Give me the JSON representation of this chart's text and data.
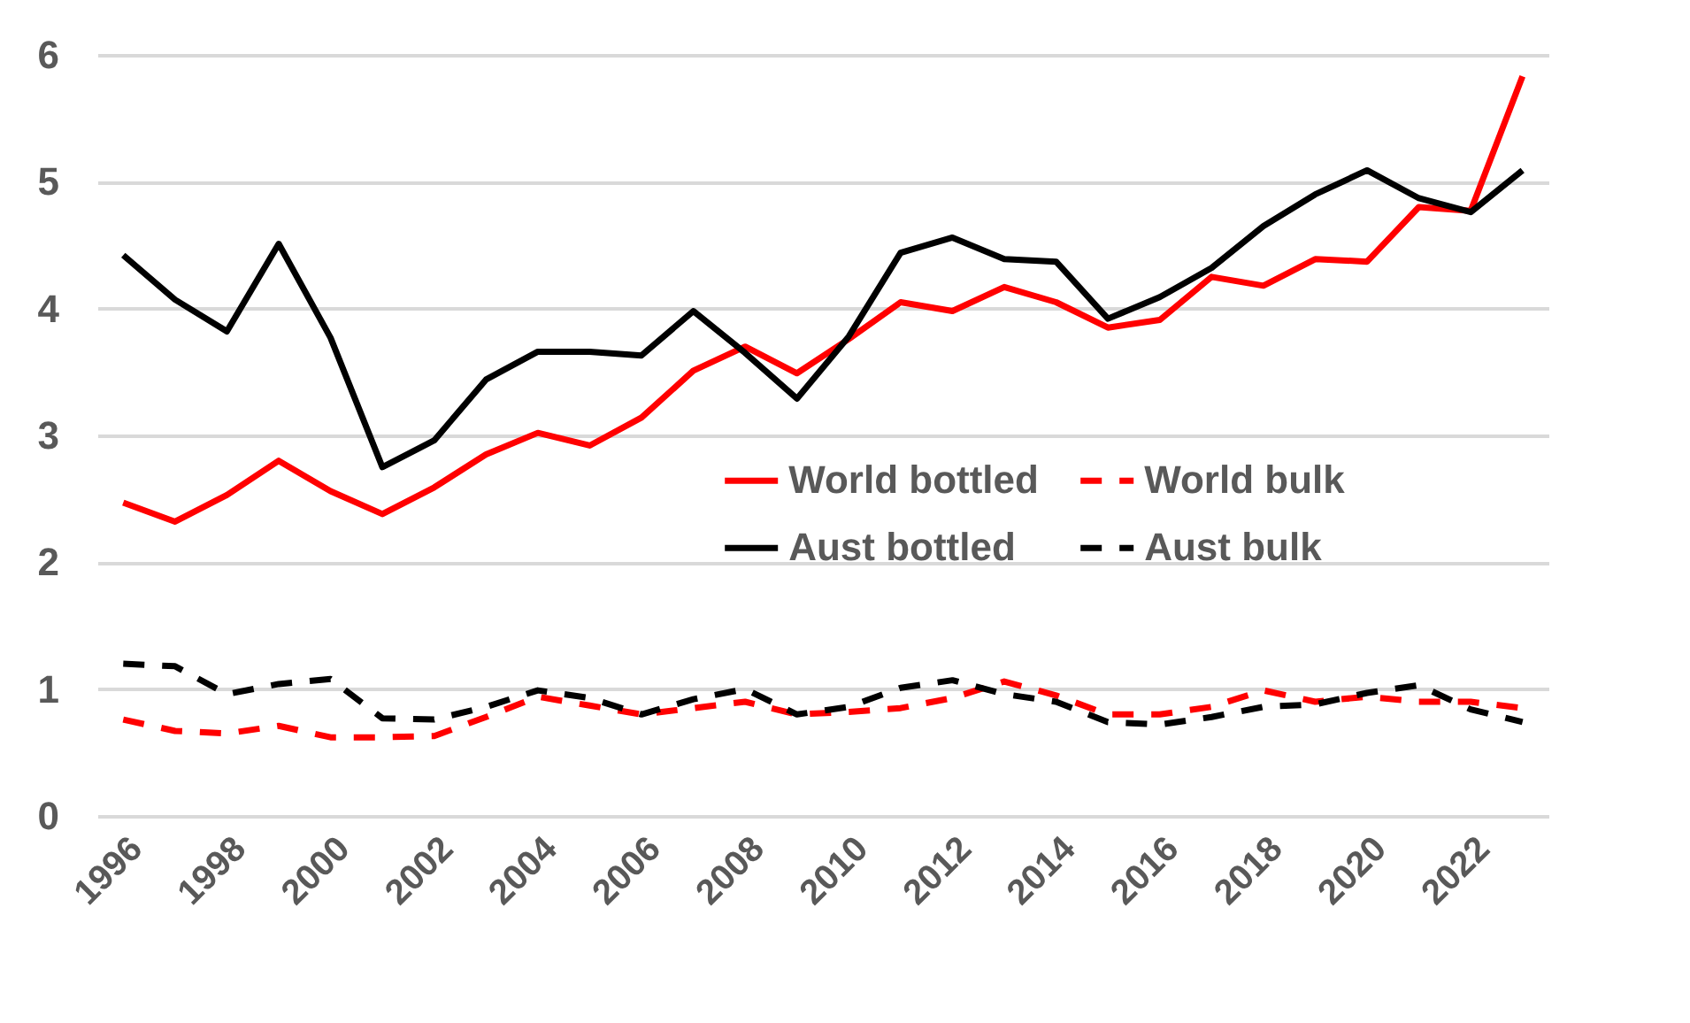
{
  "chart_data": {
    "type": "line",
    "categories": [
      "1996",
      null,
      "1998",
      null,
      "2000",
      null,
      "2002",
      null,
      "2004",
      null,
      "2006",
      null,
      "2008",
      null,
      "2010",
      null,
      "2012",
      null,
      "2014",
      null,
      "2016",
      null,
      "2018",
      null,
      "2020",
      null,
      "2022",
      null
    ],
    "series": [
      {
        "name": "World bottled",
        "color": "#ff0000",
        "line_style": "solid",
        "values": [
          2.47,
          2.32,
          2.53,
          2.8,
          2.56,
          2.38,
          2.59,
          2.85,
          3.02,
          2.92,
          3.14,
          3.51,
          3.7,
          3.49,
          3.76,
          4.05,
          3.98,
          4.17,
          4.05,
          3.85,
          3.91,
          4.25,
          4.18,
          4.39,
          4.37,
          4.8,
          4.77,
          5.83
        ]
      },
      {
        "name": "World bulk",
        "color": "#ff0000",
        "line_style": "dashed",
        "values": [
          0.76,
          0.67,
          0.65,
          0.71,
          0.62,
          0.62,
          0.63,
          0.78,
          0.94,
          0.87,
          0.8,
          0.85,
          0.9,
          0.8,
          0.82,
          0.85,
          0.93,
          1.06,
          0.95,
          0.8,
          0.8,
          0.86,
          0.99,
          0.9,
          0.94,
          0.9,
          0.9,
          0.85
        ]
      },
      {
        "name": "Aust bottled",
        "color": "#000000",
        "line_style": "solid",
        "values": [
          4.42,
          4.07,
          3.82,
          4.51,
          3.77,
          2.75,
          2.96,
          3.44,
          3.66,
          3.66,
          3.63,
          3.98,
          3.65,
          3.29,
          3.78,
          4.44,
          4.56,
          4.39,
          4.37,
          3.92,
          4.09,
          4.32,
          4.65,
          4.9,
          5.09,
          4.87,
          4.76,
          5.09
        ]
      },
      {
        "name": "Aust bulk",
        "color": "#000000",
        "line_style": "dashed",
        "values": [
          1.2,
          1.18,
          0.96,
          1.04,
          1.08,
          0.77,
          0.76,
          0.86,
          0.99,
          0.93,
          0.8,
          0.92,
          1.0,
          0.8,
          0.86,
          1.01,
          1.07,
          0.96,
          0.9,
          0.74,
          0.72,
          0.78,
          0.86,
          0.88,
          0.97,
          1.03,
          0.84,
          0.74
        ]
      }
    ],
    "ylim": [
      0,
      6
    ],
    "yticks": [
      0,
      1,
      2,
      3,
      4,
      5,
      6
    ],
    "grid": "y",
    "legend": "right",
    "marker": "none"
  }
}
